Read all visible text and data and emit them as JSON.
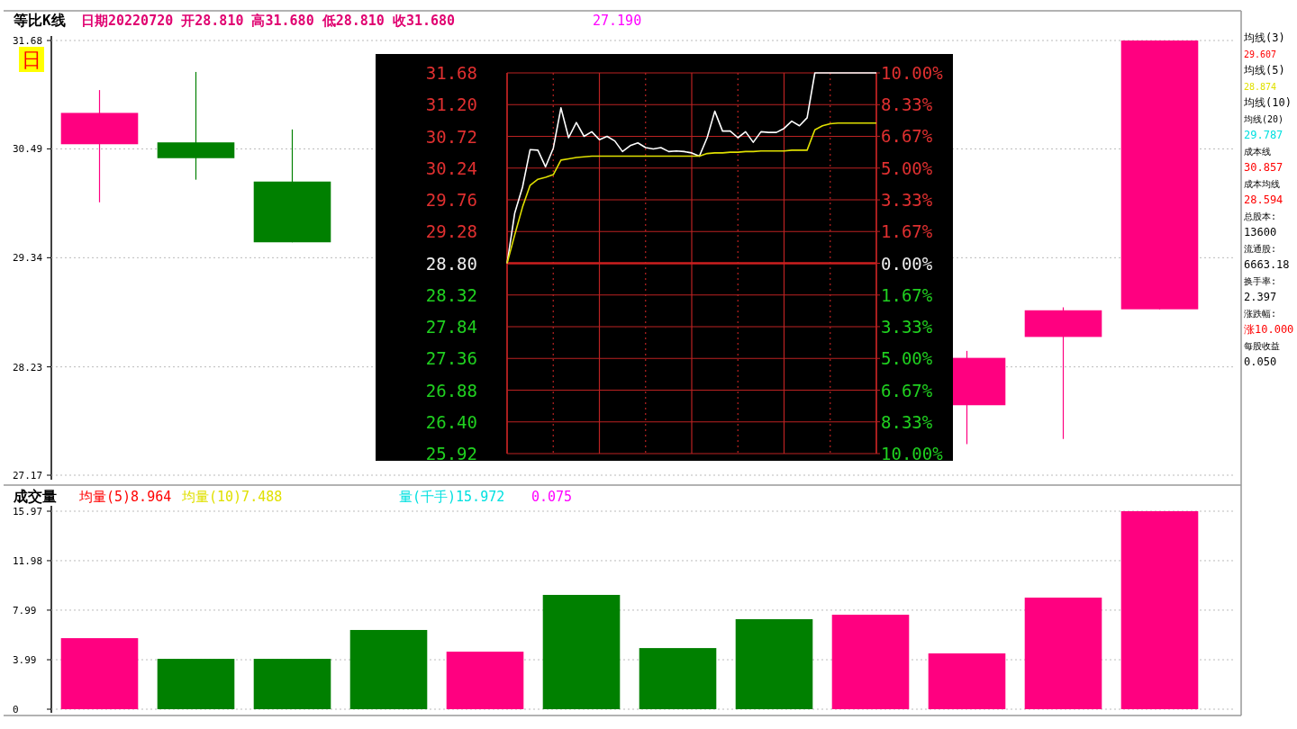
{
  "chart_data": [
    {
      "type": "candlestick",
      "title": "等比K线",
      "subtitle": "日期20220720 开28.810 高31.680 低28.810 收31.680",
      "categories": [
        null,
        null,
        null,
        null,
        null,
        null,
        null,
        null,
        null,
        null,
        null,
        null
      ],
      "ohlc": [
        [
          30.54,
          31.13,
          29.92,
          30.88
        ],
        [
          30.56,
          31.33,
          30.16,
          30.39
        ],
        [
          30.14,
          30.7,
          29.5,
          29.5
        ],
        null,
        null,
        null,
        null,
        null,
        null,
        [
          27.85,
          28.39,
          27.47,
          28.32
        ],
        [
          28.53,
          28.83,
          27.52,
          28.8
        ],
        [
          28.81,
          31.68,
          28.81,
          31.68
        ]
      ],
      "colors": [
        "#ff0080",
        "#008000",
        "#008000",
        null,
        null,
        null,
        null,
        null,
        null,
        "#ff0080",
        "#ff0080",
        "#ff0080"
      ],
      "ylim": [
        27.17,
        31.68
      ],
      "yticks": [
        27.17,
        28.23,
        29.34,
        30.49,
        31.68
      ],
      "log": "y",
      "grid": "y",
      "annotations": [
        "27.190",
        "日",
        "均线(3)",
        "29.607",
        "均线(5)",
        "28.874",
        "均线(10)",
        "均线(20)",
        "29.787",
        "成本线",
        "30.857",
        "成本均线",
        "28.594",
        "总股本:",
        "13600",
        "流通股:",
        "6663.18",
        "换手率:",
        "2.397",
        "涨跌幅:",
        "涨10.000",
        "每股收益",
        "0.050"
      ]
    },
    {
      "type": "bar",
      "title": "成交量",
      "categories": [
        null,
        null,
        null,
        null,
        null,
        null,
        null,
        null,
        null,
        null,
        null,
        null
      ],
      "values": [
        5.73,
        4.06,
        4.06,
        6.39,
        4.64,
        9.22,
        4.93,
        7.26,
        7.62,
        4.5,
        9.0,
        15.97
      ],
      "colors": [
        "#ff0080",
        "#008000",
        "#008000",
        "#008000",
        "#ff0080",
        "#008000",
        "#008000",
        "#008000",
        "#ff0080",
        "#ff0080",
        "#ff0080",
        "#ff0080"
      ],
      "ylim": [
        0,
        15.97
      ],
      "yticks": [
        0,
        3.99,
        7.99,
        11.98,
        15.97
      ],
      "grid": "y",
      "annotations": [
        "均量(5)8.964",
        "均量(10)7.488",
        "量(千手)15.972",
        "0.075"
      ]
    },
    {
      "type": "line",
      "categories": [
        null,
        null,
        null,
        null,
        null,
        null,
        null,
        null,
        null,
        null,
        null,
        null,
        null,
        null,
        null,
        null,
        null,
        null,
        null,
        null,
        null,
        null,
        null,
        null,
        null,
        null,
        null,
        null,
        null,
        null,
        null,
        null,
        null,
        null,
        null,
        null,
        null,
        null,
        null,
        null,
        null,
        null,
        null,
        null,
        null,
        null,
        null,
        null,
        null
      ],
      "ylim": [
        25.92,
        31.68
      ],
      "yticks": [
        25.92,
        {
          "value": 26.4,
          "label": "26.40"
        },
        26.88,
        27.36,
        27.84,
        28.32,
        {
          "value": 28.8,
          "label": "28.80"
        },
        29.28,
        29.76,
        30.24,
        30.72,
        {
          "value": 31.2,
          "label": "31.20"
        },
        31.68
      ],
      "y2lim": [
        -10,
        10
      ],
      "y2ticks": [
        {
          "value": -10,
          "label": "10.00%"
        },
        {
          "value": -8.33,
          "label": "8.33%"
        },
        {
          "value": -6.67,
          "label": "6.67%"
        },
        {
          "value": -5,
          "label": "5.00%"
        },
        {
          "value": -3.33,
          "label": "3.33%"
        },
        {
          "value": -1.67,
          "label": "1.67%"
        },
        {
          "value": 0,
          "label": "0.00%"
        },
        {
          "value": 1.67,
          "label": "1.67%"
        },
        {
          "value": 3.33,
          "label": "3.33%"
        },
        {
          "value": 5,
          "label": "5.00%"
        },
        {
          "value": 6.67,
          "label": "6.67%"
        },
        {
          "value": 8.33,
          "label": "8.33%"
        },
        {
          "value": 10,
          "label": "10.00%"
        }
      ],
      "grid": true,
      "ref_lines": [
        {
          "axis": "y",
          "value": 28.8,
          "color": "#cc1f1f"
        }
      ],
      "series": [
        {
          "color": "#ffffff",
          "values": [
            28.8,
            29.56,
            29.95,
            30.52,
            30.51,
            30.26,
            30.54,
            31.15,
            30.7,
            30.93,
            30.72,
            30.79,
            30.67,
            30.72,
            30.65,
            30.49,
            30.58,
            30.62,
            30.55,
            30.53,
            30.55,
            30.49,
            30.5,
            30.49,
            30.47,
            30.42,
            30.7,
            31.1,
            30.8,
            30.8,
            30.7,
            30.79,
            30.63,
            30.79,
            30.78,
            30.78,
            30.84,
            30.95,
            30.88,
            31.0,
            31.68,
            31.68,
            31.68,
            31.68,
            31.68,
            31.68,
            31.68,
            31.68,
            31.68
          ]
        },
        {
          "color": "#e0e000",
          "values": [
            28.8,
            29.23,
            29.65,
            29.98,
            30.07,
            30.1,
            30.14,
            30.36,
            30.38,
            30.4,
            30.41,
            30.42,
            30.42,
            30.42,
            30.42,
            30.42,
            30.42,
            30.42,
            30.42,
            30.42,
            30.42,
            30.42,
            30.42,
            30.42,
            30.42,
            30.42,
            30.46,
            30.47,
            30.47,
            30.48,
            30.48,
            30.49,
            30.49,
            30.5,
            30.5,
            30.5,
            30.5,
            30.51,
            30.51,
            30.51,
            30.82,
            30.88,
            30.91,
            30.92,
            30.92,
            30.92,
            30.92,
            30.92,
            30.92
          ]
        }
      ]
    }
  ]
}
